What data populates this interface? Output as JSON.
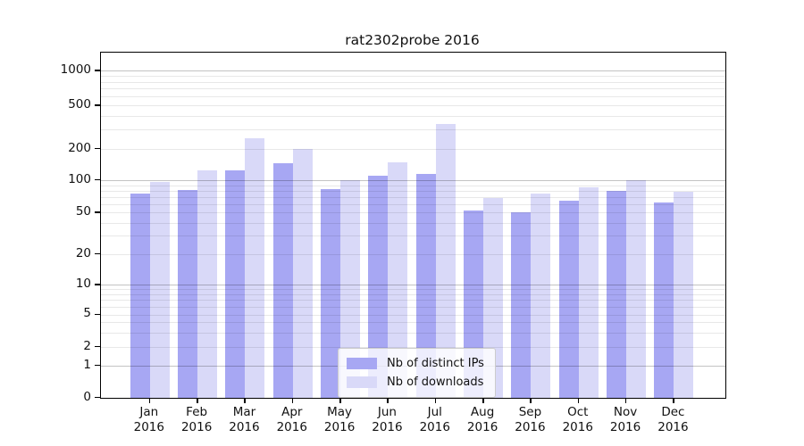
{
  "chart_data": {
    "type": "bar",
    "title": "rat2302probe 2016",
    "categories": [
      "Jan\n2016",
      "Feb\n2016",
      "Mar\n2016",
      "Apr\n2016",
      "May\n2016",
      "Jun\n2016",
      "Jul\n2016",
      "Aug\n2016",
      "Sep\n2016",
      "Oct\n2016",
      "Nov\n2016",
      "Dec\n2016"
    ],
    "series": [
      {
        "name": "Nb of distinct IPs",
        "color": "#a7a7f3",
        "values": [
          75,
          81,
          125,
          145,
          83,
          110,
          114,
          52,
          50,
          65,
          80,
          62
        ]
      },
      {
        "name": "Nb of downloads",
        "color": "#d9d9f8",
        "values": [
          96,
          124,
          250,
          200,
          101,
          149,
          340,
          68,
          75,
          86,
          100,
          78
        ]
      }
    ],
    "xlabel": "",
    "ylabel": "",
    "y_scale": "symlog",
    "y_ticks": [
      0,
      1,
      2,
      5,
      10,
      20,
      50,
      100,
      200,
      500,
      1000
    ],
    "ylim": [
      0,
      1400
    ],
    "grid": "major and minor horizontal gridlines",
    "legend_position": "lower center inside plot",
    "colors": {
      "axis_line": "#000000",
      "major_grid": "#c3c3c3",
      "minor_grid": "#e8e8e8",
      "legend_border": "#cccccc",
      "text": "#111111",
      "background": "#ffffff"
    }
  }
}
